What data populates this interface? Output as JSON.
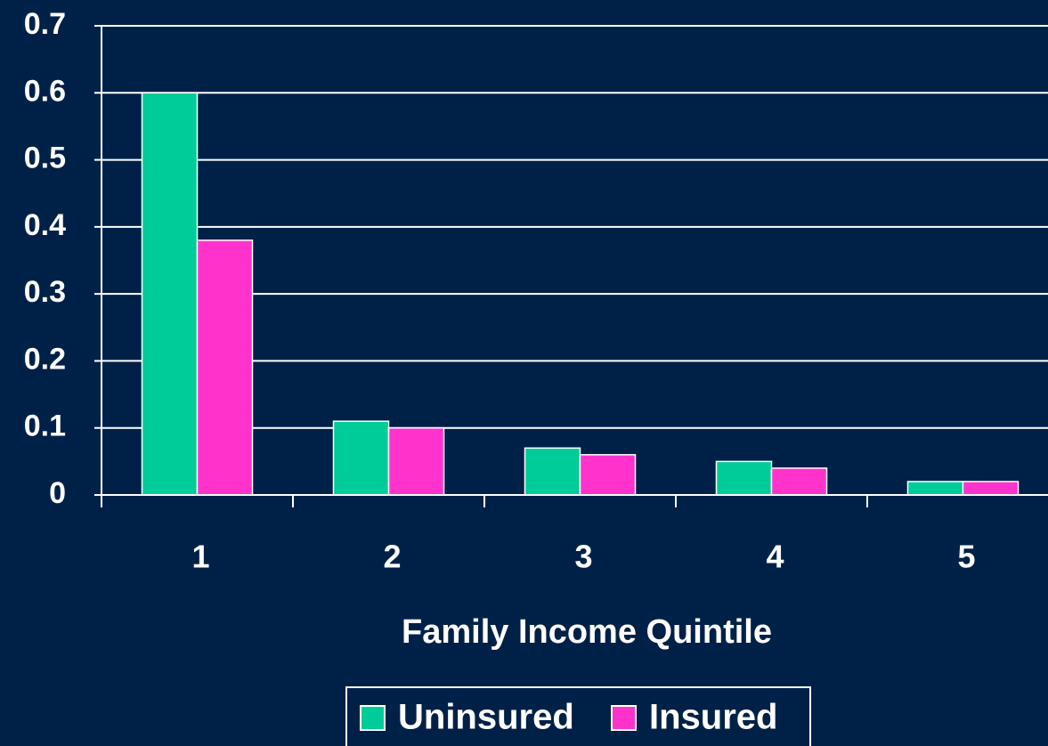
{
  "chart_data": {
    "type": "bar",
    "x_label": "Family Income Quintile",
    "categories": [
      "1",
      "2",
      "3",
      "4",
      "5"
    ],
    "series": [
      {
        "name": "Uninsured",
        "color": "#00cc99",
        "values": [
          0.6,
          0.11,
          0.07,
          0.05,
          0.02
        ]
      },
      {
        "name": "Insured",
        "color": "#ff33cc",
        "values": [
          0.38,
          0.1,
          0.06,
          0.04,
          0.02
        ]
      }
    ],
    "ylim": [
      0,
      0.7
    ],
    "yticks": [
      0,
      0.1,
      0.2,
      0.3,
      0.4,
      0.5,
      0.6,
      0.7
    ],
    "grid": true
  }
}
